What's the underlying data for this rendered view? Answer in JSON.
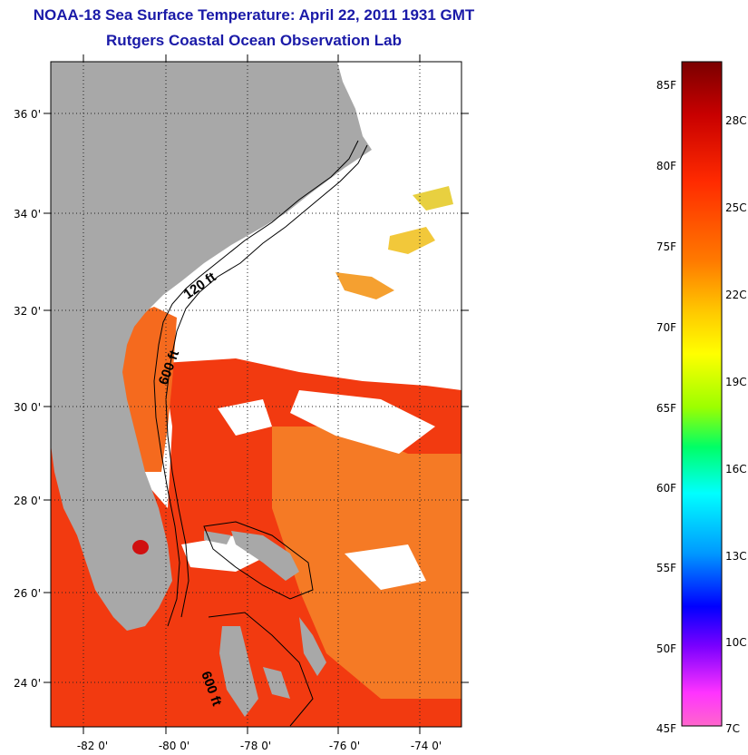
{
  "title": "NOAA-18 Sea Surface Temperature:  April 22, 2011 1931 GMT",
  "subtitle": "Rutgers Coastal Ocean Observation Lab",
  "axes": {
    "lon_ticks": [
      "-82 0'",
      "-80 0'",
      "-78 0'",
      "-76 0'",
      "-74 0'"
    ],
    "lat_ticks": [
      "36 0'",
      "34 0'",
      "32 0'",
      "30 0'",
      "28 0'",
      "26 0'",
      "24 0'"
    ]
  },
  "contour_labels": [
    "120 ft",
    "600 ft",
    "600 ft"
  ],
  "colorbar": {
    "fahrenheit": [
      "85F",
      "80F",
      "75F",
      "70F",
      "65F",
      "60F",
      "55F",
      "50F",
      "45F"
    ],
    "celsius": [
      "28C",
      "25C",
      "22C",
      "19C",
      "16C",
      "13C",
      "10C",
      "7C"
    ],
    "colors": [
      "#7a0000",
      "#c80000",
      "#ff2a00",
      "#ff7a00",
      "#ffcc00",
      "#ffff00",
      "#9cff00",
      "#00ff66",
      "#00ffff",
      "#0099ff",
      "#0000ff",
      "#7a00ff",
      "#ff33ff",
      "#ff66cc"
    ]
  },
  "colors": {
    "land": "#a8a8a8",
    "title": "#1a1aa8",
    "water_warm": "#f23a10",
    "water_mid": "#f56a1e",
    "water_orange": "#f58a2a",
    "cloud": "#ffffff"
  }
}
